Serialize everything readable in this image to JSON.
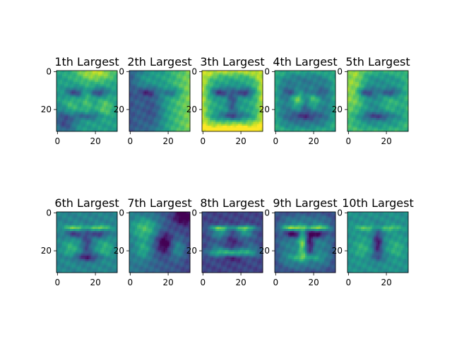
{
  "chart_data": {
    "type": "heatmap",
    "colormap": "viridis",
    "image_size": [
      32,
      32
    ],
    "xticks": [
      "0",
      "20"
    ],
    "yticks": [
      "0",
      "20"
    ],
    "panels": [
      {
        "title": "1th Largest",
        "pattern": "face_light_top"
      },
      {
        "title": "2th Largest",
        "pattern": "face_split_lr"
      },
      {
        "title": "3th Largest",
        "pattern": "face_bright_frame"
      },
      {
        "title": "4th Largest",
        "pattern": "face_dark"
      },
      {
        "title": "5th Largest",
        "pattern": "face_light_left"
      },
      {
        "title": "6th Largest",
        "pattern": "face_mid"
      },
      {
        "title": "7th Largest",
        "pattern": "face_dark_right"
      },
      {
        "title": "8th Largest",
        "pattern": "face_dark_blue"
      },
      {
        "title": "9th Largest",
        "pattern": "face_contrast"
      },
      {
        "title": "10th Largest",
        "pattern": "face_flat"
      }
    ]
  },
  "colors": {
    "viridis_dark": "#440154",
    "viridis_mid": "#21918c",
    "viridis_bright": "#fde725"
  }
}
